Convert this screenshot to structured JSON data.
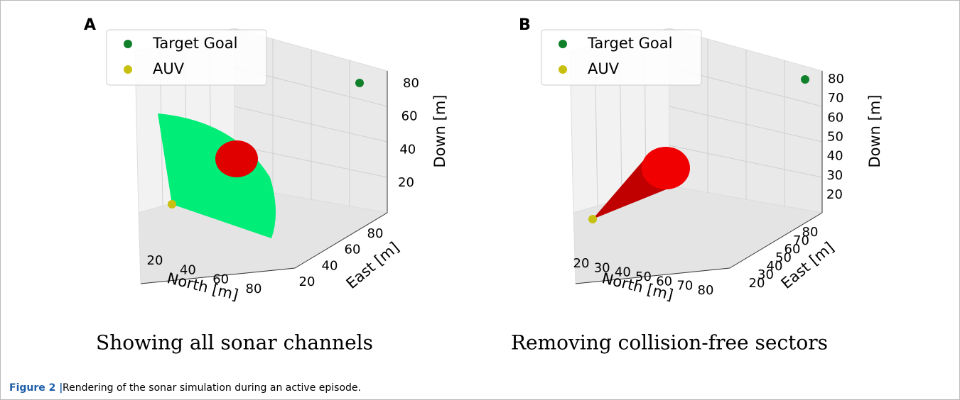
{
  "panels": [
    {
      "label": "A",
      "legend": [
        "Target Goal",
        "AUV"
      ],
      "x_label": "North [m]",
      "y_label": "East [m]",
      "z_label": "Down [m]",
      "x_ticks": [
        20,
        40,
        60,
        80
      ],
      "y_ticks": [
        20,
        40,
        60,
        80
      ],
      "z_ticks": [
        20,
        40,
        60,
        80
      ],
      "caption": "Showing all sonar channels"
    },
    {
      "label": "B",
      "legend": [
        "Target Goal",
        "AUV"
      ],
      "x_label": "North [m]",
      "y_label": "East [m]",
      "z_label": "Down [m]",
      "x_ticks": [
        20,
        30,
        40,
        50,
        60,
        70,
        80
      ],
      "y_ticks": [
        20,
        30,
        40,
        50,
        60,
        70,
        80
      ],
      "z_ticks": [
        20,
        30,
        40,
        50,
        60,
        70,
        80
      ],
      "caption": "Removing collision-free sectors"
    }
  ],
  "figure_caption": {
    "label": "Figure 2 |",
    "text": "Rendering of the sonar simulation during an active episode."
  }
}
